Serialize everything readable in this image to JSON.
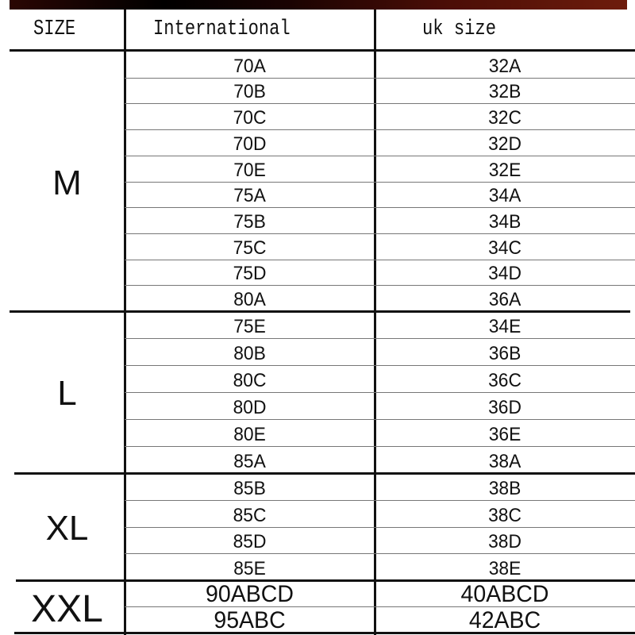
{
  "header": {
    "size": "SIZE",
    "international": "International",
    "uk": "uk size"
  },
  "groups": [
    {
      "label": "M",
      "rows": [
        [
          "70A",
          "32A"
        ],
        [
          "70B",
          "32B"
        ],
        [
          "70C",
          "32C"
        ],
        [
          "70D",
          "32D"
        ],
        [
          "70E",
          "32E"
        ],
        [
          "75A",
          "34A"
        ],
        [
          "75B",
          "34B"
        ],
        [
          "75C",
          "34C"
        ],
        [
          "75D",
          "34D"
        ],
        [
          "80A",
          "36A"
        ]
      ]
    },
    {
      "label": "L",
      "rows": [
        [
          "75E",
          "34E"
        ],
        [
          "80B",
          "36B"
        ],
        [
          "80C",
          "36C"
        ],
        [
          "80D",
          "36D"
        ],
        [
          "80E",
          "36E"
        ],
        [
          "85A",
          "38A"
        ]
      ]
    },
    {
      "label": "XL",
      "rows": [
        [
          "85B",
          "38B"
        ],
        [
          "85C",
          "38C"
        ],
        [
          "85D",
          "38D"
        ],
        [
          "85E",
          "38E"
        ]
      ]
    },
    {
      "label": "XXL",
      "rows": [
        [
          "90ABCD",
          "40ABCD"
        ],
        [
          "95ABC",
          "42ABC"
        ]
      ]
    }
  ]
}
